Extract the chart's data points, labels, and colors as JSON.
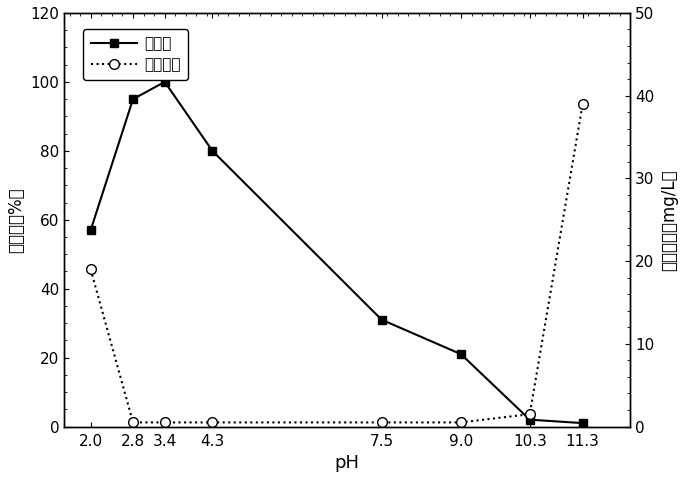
{
  "ph_values": [
    2.0,
    2.8,
    3.4,
    4.3,
    7.5,
    9.0,
    10.3,
    11.3
  ],
  "removal_rate": [
    57,
    95,
    100,
    80,
    31,
    21,
    2,
    1
  ],
  "iron_residual": [
    19,
    0.5,
    0.5,
    0.5,
    0.5,
    0.5,
    1.5,
    39
  ],
  "xlabel": "pH",
  "ylabel_left": "去除率（%）",
  "ylabel_right": "铁残留量（mg/L）",
  "legend_removal": "去除率",
  "legend_iron": "铁残留量",
  "ylim_left": [
    0,
    120
  ],
  "ylim_right": [
    0,
    50
  ],
  "yticks_left": [
    0,
    20,
    40,
    60,
    80,
    100,
    120
  ],
  "yticks_right": [
    0,
    10,
    20,
    30,
    40,
    50
  ],
  "line_color": "black",
  "bg_color": "white",
  "xlim": [
    1.5,
    12.2
  ]
}
